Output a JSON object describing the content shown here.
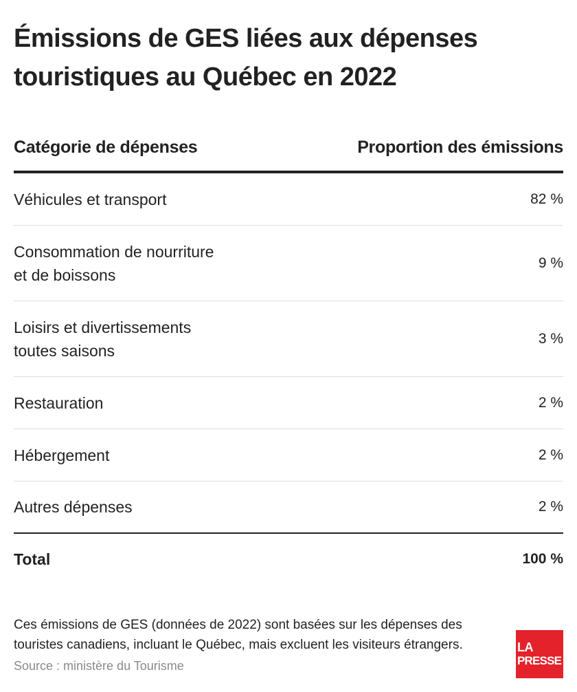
{
  "title": "Émissions de GES liées aux dépenses touristiques au Québec en 2022",
  "table": {
    "headers": {
      "category": "Catégorie de dépenses",
      "proportion": "Proportion des émissions"
    },
    "rows": [
      {
        "category": "Véhicules et transport",
        "value": "82 %"
      },
      {
        "category": "Consommation de nourriture\net de boissons",
        "value": "9 %"
      },
      {
        "category": "Loisirs et divertissements\ntoutes saisons",
        "value": "3 %"
      },
      {
        "category": "Restauration",
        "value": "2 %"
      },
      {
        "category": "Hébergement",
        "value": "2 %"
      },
      {
        "category": "Autres dépenses",
        "value": "2 %"
      }
    ],
    "total": {
      "label": "Total",
      "value": "100 %"
    }
  },
  "note": "Ces émissions de GES (données de 2022) sont basées sur les dépenses des touristes canadiens, incluant le Québec, mais excluent les visiteurs étrangers.",
  "source": "Source : ministère du Tourisme",
  "logo": {
    "line1": "LA",
    "line2": "PRESSE",
    "color": "#e3222b"
  }
}
